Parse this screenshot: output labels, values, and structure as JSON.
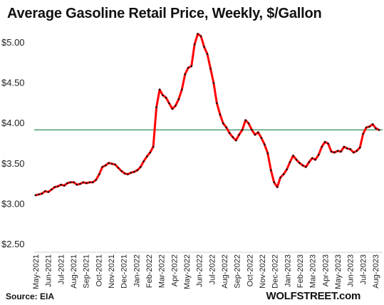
{
  "chart_data": {
    "type": "line",
    "title": "Average Gasoline Retail Price, Weekly, $/Gallon",
    "source": "Source: EIA",
    "brand": "WOLFSTREET.com",
    "xlabel": "",
    "ylabel": "",
    "ylim": [
      2.5,
      5.25
    ],
    "y_ticks": [
      {
        "value": 2.5,
        "label": "$2.50"
      },
      {
        "value": 3.0,
        "label": "$3.00"
      },
      {
        "value": 3.5,
        "label": "$3.50"
      },
      {
        "value": 4.0,
        "label": "$4.00"
      },
      {
        "value": 4.5,
        "label": "$4.50"
      },
      {
        "value": 5.0,
        "label": "$5.00"
      }
    ],
    "x_ticks": [
      "May-2021",
      "Jun-2021",
      "Jul-2021",
      "Aug-2021",
      "Sep-2021",
      "Oct-2021",
      "Nov-2021",
      "Dec-2021",
      "Jan-2022",
      "Feb-2022",
      "Mar-2022",
      "Apr-2022",
      "May-2022",
      "Jun-2022",
      "Jul-2022",
      "Aug-2022",
      "Sep-2022",
      "Oct-2022",
      "Nov-2022",
      "Dec-2022",
      "Jan-2023",
      "Feb-2023",
      "Mar-2023",
      "Apr-2023",
      "May-2023",
      "Jun-2023",
      "Jul-2023",
      "Aug-2023"
    ],
    "reference_line": {
      "value": 3.92,
      "color": "#2e8b57"
    },
    "grid": false,
    "series": [
      {
        "color": "#ff0000",
        "marker_color": "#111111",
        "values": [
          3.11,
          3.12,
          3.13,
          3.16,
          3.15,
          3.18,
          3.21,
          3.22,
          3.24,
          3.23,
          3.26,
          3.27,
          3.27,
          3.24,
          3.25,
          3.27,
          3.26,
          3.27,
          3.27,
          3.3,
          3.37,
          3.46,
          3.48,
          3.51,
          3.5,
          3.49,
          3.45,
          3.41,
          3.38,
          3.37,
          3.39,
          3.4,
          3.42,
          3.46,
          3.53,
          3.59,
          3.64,
          3.71,
          4.2,
          4.42,
          4.35,
          4.32,
          4.25,
          4.18,
          4.22,
          4.3,
          4.42,
          4.61,
          4.69,
          4.71,
          4.98,
          5.11,
          5.08,
          4.95,
          4.86,
          4.68,
          4.5,
          4.25,
          4.11,
          4.0,
          3.95,
          3.88,
          3.83,
          3.79,
          3.86,
          3.92,
          4.04,
          4.0,
          3.92,
          3.86,
          3.89,
          3.82,
          3.74,
          3.63,
          3.42,
          3.27,
          3.21,
          3.33,
          3.37,
          3.43,
          3.52,
          3.6,
          3.55,
          3.51,
          3.48,
          3.46,
          3.52,
          3.57,
          3.55,
          3.61,
          3.71,
          3.77,
          3.75,
          3.65,
          3.64,
          3.66,
          3.65,
          3.71,
          3.69,
          3.68,
          3.64,
          3.66,
          3.7,
          3.87,
          3.95,
          3.96,
          3.99,
          3.94,
          3.92
        ]
      }
    ]
  }
}
